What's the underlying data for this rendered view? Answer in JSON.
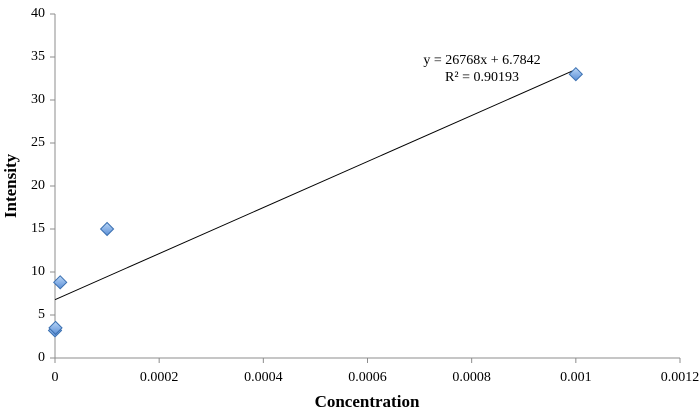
{
  "chart_data": {
    "type": "scatter",
    "x_label": "Concentration",
    "y_label": "Intensity",
    "series": [
      {
        "name": "Intensity",
        "color": "#7aaee8",
        "x": [
          0,
          1e-06,
          1e-05,
          0.0001,
          0.001
        ],
        "values": [
          3.2,
          3.5,
          8.8,
          15,
          33
        ]
      }
    ],
    "trendline": {
      "slope": 26768,
      "intercept": 6.7842,
      "equation": "y = 26768x + 6.7842",
      "r_squared": "R² = 0.90193"
    },
    "xlim": [
      0,
      0.0012
    ],
    "xticks": [
      0,
      0.0002,
      0.0004,
      0.0006,
      0.0008,
      0.001,
      0.0012
    ],
    "ylim": [
      0,
      40
    ],
    "yticks": [
      0,
      5,
      10,
      15,
      20,
      25,
      30,
      35,
      40
    ],
    "grid": false
  }
}
